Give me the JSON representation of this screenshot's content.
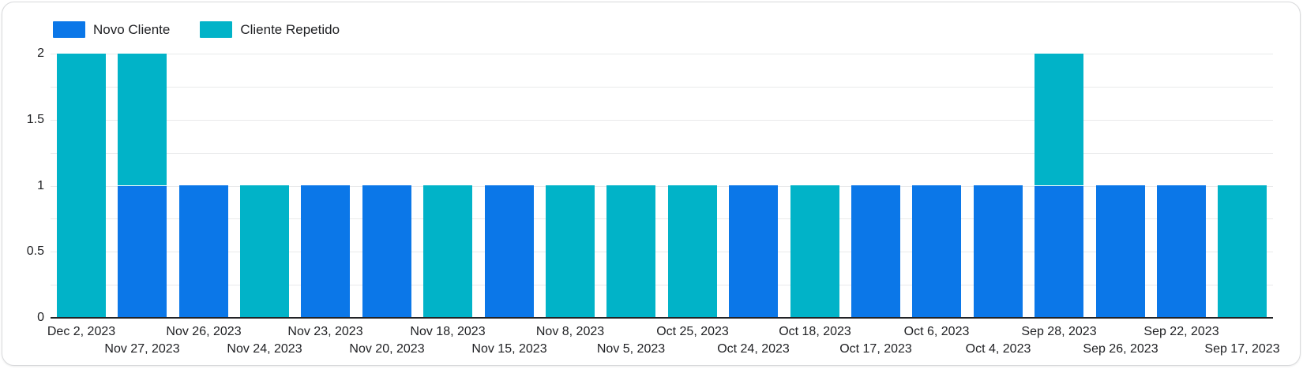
{
  "chart_data": {
    "type": "bar",
    "stacked": true,
    "title": "",
    "xlabel": "",
    "ylabel": "",
    "categories": [
      "Dec 2, 2023",
      "Nov 27, 2023",
      "Nov 26, 2023",
      "Nov 24, 2023",
      "Nov 23, 2023",
      "Nov 20, 2023",
      "Nov 18, 2023",
      "Nov 15, 2023",
      "Nov 8, 2023",
      "Nov 5, 2023",
      "Oct 25, 2023",
      "Oct 24, 2023",
      "Oct 18, 2023",
      "Oct 17, 2023",
      "Oct 6, 2023",
      "Oct 4, 2023",
      "Sep 28, 2023",
      "Sep 26, 2023",
      "Sep 22, 2023",
      "Sep 17, 2023"
    ],
    "series": [
      {
        "name": "Novo Cliente",
        "color": "#0b77e8",
        "values": [
          0,
          1,
          1,
          0,
          1,
          1,
          0,
          1,
          0,
          0,
          0,
          1,
          0,
          1,
          1,
          1,
          1,
          1,
          1,
          0
        ]
      },
      {
        "name": "Cliente Repetido",
        "color": "#01b3c8",
        "values": [
          2,
          1,
          0,
          1,
          0,
          0,
          1,
          0,
          1,
          1,
          1,
          0,
          1,
          0,
          0,
          0,
          1,
          0,
          0,
          1
        ]
      }
    ],
    "ylim": [
      0,
      2
    ],
    "y_ticks": [
      0,
      0.5,
      1,
      1.5,
      2
    ],
    "grid": true,
    "grid_step": 0.25,
    "legend_position": "top-left",
    "x_label_rows": 2
  },
  "colors": {
    "novo_cliente": "#0b77e8",
    "cliente_repetido": "#01b3c8",
    "gridline": "#e9eaeb",
    "axis_line": "#222326",
    "text": "#202124",
    "card_border": "#d9dadc",
    "card_background": "#ffffff"
  }
}
